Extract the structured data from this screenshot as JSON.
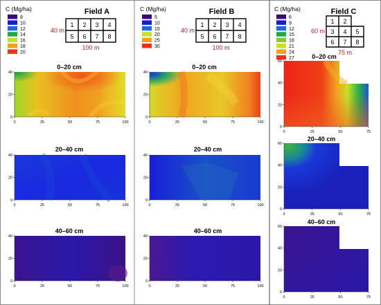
{
  "fields": [
    {
      "title": "Field A",
      "legend_title": "C (Mg/ha)",
      "legend": [
        {
          "label": "8",
          "color": "#3a0a78"
        },
        {
          "label": "10",
          "color": "#1a1ad0"
        },
        {
          "label": "12",
          "color": "#1a6ad8"
        },
        {
          "label": "14",
          "color": "#1ea84a"
        },
        {
          "label": "16",
          "color": "#c8e028"
        },
        {
          "label": "18",
          "color": "#f2a01e"
        },
        {
          "label": "20",
          "color": "#ee3018"
        }
      ],
      "plots": [
        "1",
        "2",
        "3",
        "4",
        "5",
        "6",
        "7",
        "8"
      ],
      "width_label": "100 m",
      "height_label": "40 m",
      "depths": [
        "0–20 cm",
        "20–40 cm",
        "40–60 cm"
      ],
      "x_ticks": [
        "0",
        "25",
        "50",
        "75",
        "100"
      ],
      "y_ticks": [
        "0",
        "20",
        "40"
      ]
    },
    {
      "title": "Field B",
      "legend_title": "C (Mg/ha)",
      "legend": [
        {
          "label": "5",
          "color": "#3a0a78"
        },
        {
          "label": "10",
          "color": "#1a1ad0"
        },
        {
          "label": "15",
          "color": "#1a6ad8"
        },
        {
          "label": "20",
          "color": "#c8e028"
        },
        {
          "label": "25",
          "color": "#f2a01e"
        },
        {
          "label": "30",
          "color": "#ee3018"
        }
      ],
      "plots": [
        "1",
        "2",
        "3",
        "4",
        "5",
        "6",
        "7",
        "8"
      ],
      "width_label": "100 m",
      "height_label": "40 m",
      "depths": [
        "0–20 cm",
        "20–40 cm",
        "40–60 cm"
      ],
      "x_ticks": [
        "0",
        "25",
        "50",
        "75",
        "100"
      ],
      "y_ticks": [
        "0",
        "20",
        "40"
      ]
    },
    {
      "title": "Field C",
      "legend_title": "C (Mg/ha)",
      "legend": [
        {
          "label": "6",
          "color": "#3a0a78"
        },
        {
          "label": "9",
          "color": "#1a1ad0"
        },
        {
          "label": "12",
          "color": "#1a6ad8"
        },
        {
          "label": "15",
          "color": "#1ea84a"
        },
        {
          "label": "18",
          "color": "#88c830"
        },
        {
          "label": "21",
          "color": "#c8e028"
        },
        {
          "label": "24",
          "color": "#f2a01e"
        },
        {
          "label": "27",
          "color": "#ee3018"
        }
      ],
      "plots": [
        "1",
        "2",
        "3",
        "4",
        "5",
        "6",
        "7",
        "8"
      ],
      "width_label": "75 m",
      "height_label": "60 m",
      "depths": [
        "0–20 cm",
        "20–40 cm",
        "40–60 cm"
      ],
      "x_ticks": [
        "0",
        "25",
        "50",
        "75"
      ],
      "y_ticks": [
        "0",
        "20",
        "40",
        "60"
      ]
    }
  ]
}
